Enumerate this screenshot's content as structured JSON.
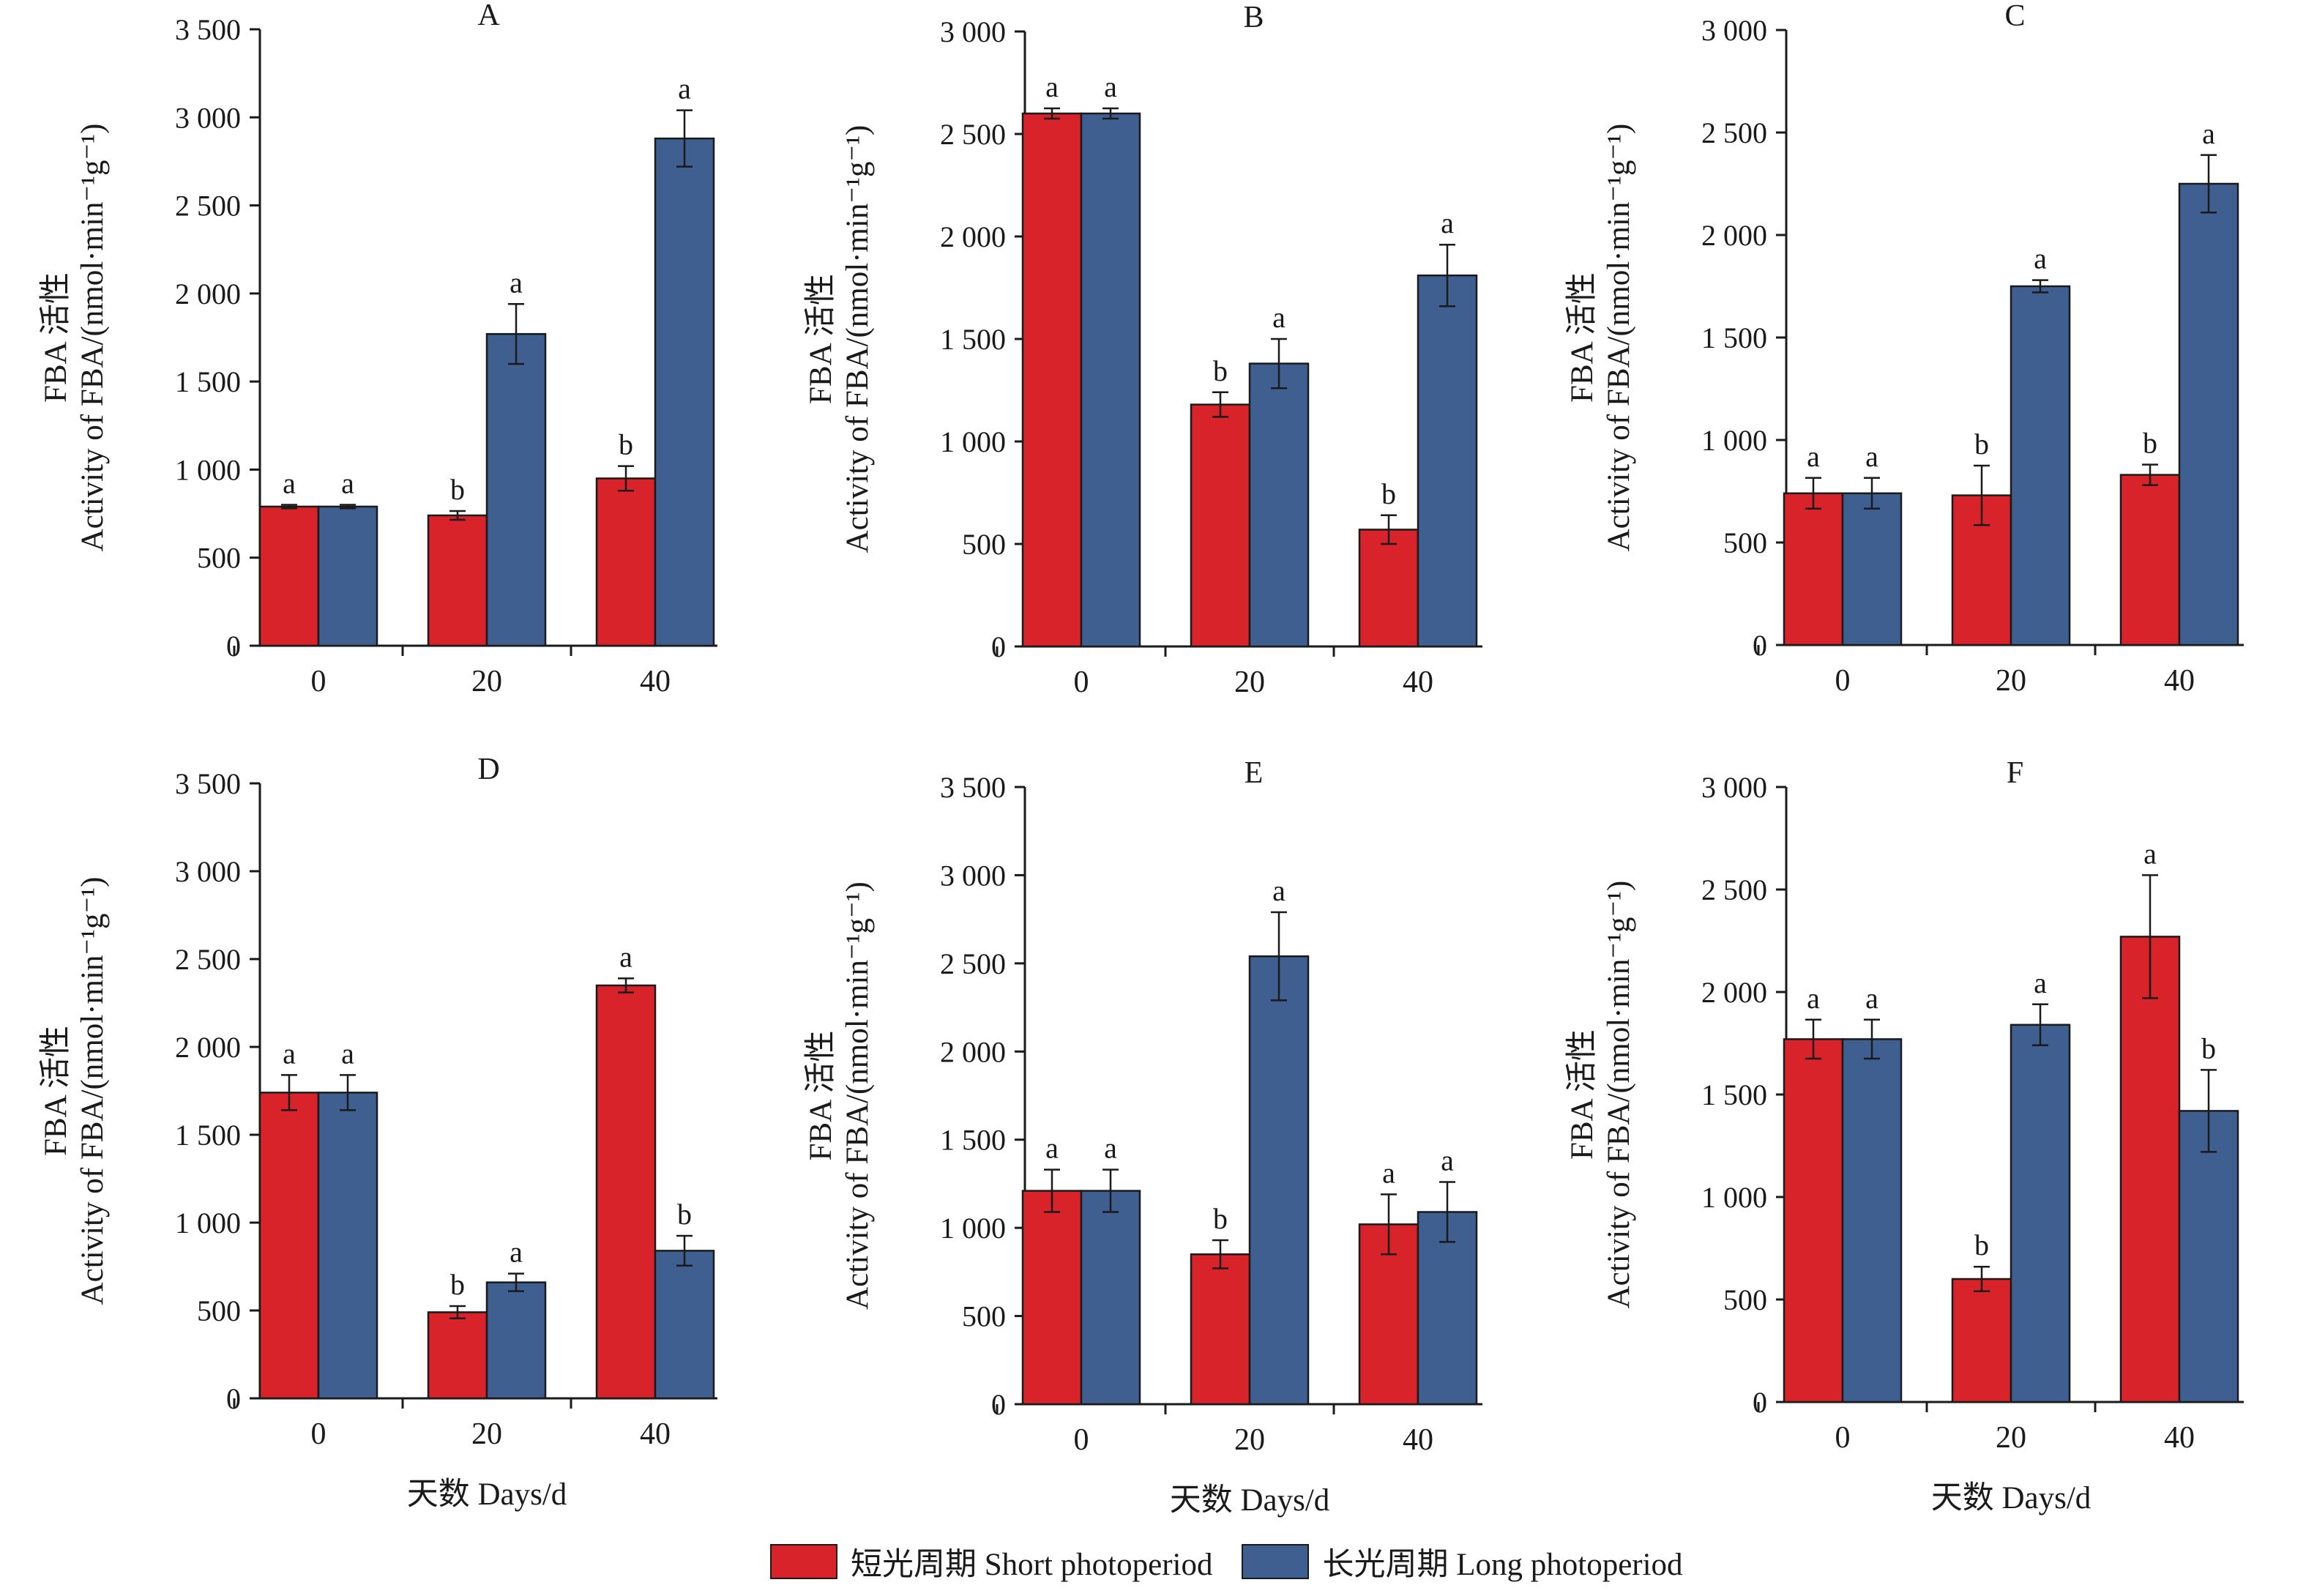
{
  "colors": {
    "short": "#d8232a",
    "long": "#3f5f91",
    "axis": "#1a1a1a"
  },
  "legend": {
    "short_label": "短光周期 Short photoperiod",
    "long_label": "长光周期 Long photoperiod"
  },
  "axis_text": {
    "ylabel_line1": "FBA 活性",
    "ylabel_line2": "Activity of FBA/(nmol·min⁻¹g⁻¹)",
    "xlabel": "天数 Days/d"
  },
  "chart_data": [
    {
      "type": "bar",
      "title": "A",
      "categories": [
        "0",
        "20",
        "40"
      ],
      "ylim": [
        0,
        3500
      ],
      "yticks": [
        "0",
        "500",
        "1 000",
        "1 500",
        "2 000",
        "2 500",
        "3 000",
        "3 500"
      ],
      "ytick_values": [
        0,
        500,
        1000,
        1500,
        2000,
        2500,
        3000,
        3500
      ],
      "series": [
        {
          "name": "短光周期 Short photoperiod",
          "values": [
            790,
            740,
            950
          ],
          "errors": [
            10,
            25,
            70
          ],
          "letters": [
            "a",
            "b",
            "b"
          ]
        },
        {
          "name": "长光周期 Long photoperiod",
          "values": [
            790,
            1770,
            2880
          ],
          "errors": [
            10,
            170,
            160
          ],
          "letters": [
            "a",
            "a",
            "a"
          ]
        }
      ],
      "show_ylabel": true,
      "show_xlabel": false
    },
    {
      "type": "bar",
      "title": "B",
      "categories": [
        "0",
        "20",
        "40"
      ],
      "ylim": [
        0,
        3000
      ],
      "yticks": [
        "0",
        "500",
        "1 000",
        "1 500",
        "2 000",
        "2 500",
        "3 000"
      ],
      "ytick_values": [
        0,
        500,
        1000,
        1500,
        2000,
        2500,
        3000
      ],
      "series": [
        {
          "name": "短光周期 Short photoperiod",
          "values": [
            2600,
            1180,
            570
          ],
          "errors": [
            25,
            60,
            70
          ],
          "letters": [
            "a",
            "b",
            "b"
          ]
        },
        {
          "name": "长光周期 Long photoperiod",
          "values": [
            2600,
            1380,
            1810
          ],
          "errors": [
            25,
            120,
            150
          ],
          "letters": [
            "a",
            "a",
            "a"
          ]
        }
      ],
      "show_ylabel": true,
      "show_xlabel": false
    },
    {
      "type": "bar",
      "title": "C",
      "categories": [
        "0",
        "20",
        "40"
      ],
      "ylim": [
        0,
        3000
      ],
      "yticks": [
        "0",
        "500",
        "1 000",
        "1 500",
        "2 000",
        "2 500",
        "3 000"
      ],
      "ytick_values": [
        0,
        500,
        1000,
        1500,
        2000,
        2500,
        3000
      ],
      "series": [
        {
          "name": "短光周期 Short photoperiod",
          "values": [
            740,
            730,
            830
          ],
          "errors": [
            75,
            145,
            50
          ],
          "letters": [
            "a",
            "b",
            "b"
          ]
        },
        {
          "name": "长光周期 Long photoperiod",
          "values": [
            740,
            1750,
            2250
          ],
          "errors": [
            75,
            30,
            140
          ],
          "letters": [
            "a",
            "a",
            "a"
          ]
        }
      ],
      "show_ylabel": true,
      "show_xlabel": false
    },
    {
      "type": "bar",
      "title": "D",
      "categories": [
        "0",
        "20",
        "40"
      ],
      "ylim": [
        0,
        3500
      ],
      "yticks": [
        "0",
        "500",
        "1 000",
        "1 500",
        "2 000",
        "2 500",
        "3 000",
        "3 500"
      ],
      "ytick_values": [
        0,
        500,
        1000,
        1500,
        2000,
        2500,
        3000,
        3500
      ],
      "series": [
        {
          "name": "短光周期 Short photoperiod",
          "values": [
            1740,
            490,
            2350
          ],
          "errors": [
            100,
            35,
            40
          ],
          "letters": [
            "a",
            "b",
            "a"
          ]
        },
        {
          "name": "长光周期 Long photoperiod",
          "values": [
            1740,
            660,
            840
          ],
          "errors": [
            100,
            50,
            85
          ],
          "letters": [
            "a",
            "a",
            "b"
          ]
        }
      ],
      "show_ylabel": true,
      "show_xlabel": true
    },
    {
      "type": "bar",
      "title": "E",
      "categories": [
        "0",
        "20",
        "40"
      ],
      "ylim": [
        0,
        3500
      ],
      "yticks": [
        "0",
        "500",
        "1 000",
        "1 500",
        "2 000",
        "2 500",
        "3 000",
        "3 500"
      ],
      "ytick_values": [
        0,
        500,
        1000,
        1500,
        2000,
        2500,
        3000,
        3500
      ],
      "series": [
        {
          "name": "短光周期 Short photoperiod",
          "values": [
            1210,
            850,
            1020
          ],
          "errors": [
            120,
            80,
            170
          ],
          "letters": [
            "a",
            "b",
            "a"
          ]
        },
        {
          "name": "长光周期 Long photoperiod",
          "values": [
            1210,
            2540,
            1090
          ],
          "errors": [
            120,
            250,
            170
          ],
          "letters": [
            "a",
            "a",
            "a"
          ]
        }
      ],
      "show_ylabel": true,
      "show_xlabel": true
    },
    {
      "type": "bar",
      "title": "F",
      "categories": [
        "0",
        "20",
        "40"
      ],
      "ylim": [
        0,
        3000
      ],
      "yticks": [
        "0",
        "500",
        "1 000",
        "1 500",
        "2 000",
        "2 500",
        "3 000"
      ],
      "ytick_values": [
        0,
        500,
        1000,
        1500,
        2000,
        2500,
        3000
      ],
      "series": [
        {
          "name": "短光周期 Short photoperiod",
          "values": [
            1770,
            600,
            2270
          ],
          "errors": [
            95,
            60,
            300
          ],
          "letters": [
            "a",
            "b",
            "a"
          ]
        },
        {
          "name": "长光周期 Long photoperiod",
          "values": [
            1770,
            1840,
            1420
          ],
          "errors": [
            95,
            100,
            200
          ],
          "letters": [
            "a",
            "a",
            "b"
          ]
        }
      ],
      "show_ylabel": true,
      "show_xlabel": true
    }
  ]
}
